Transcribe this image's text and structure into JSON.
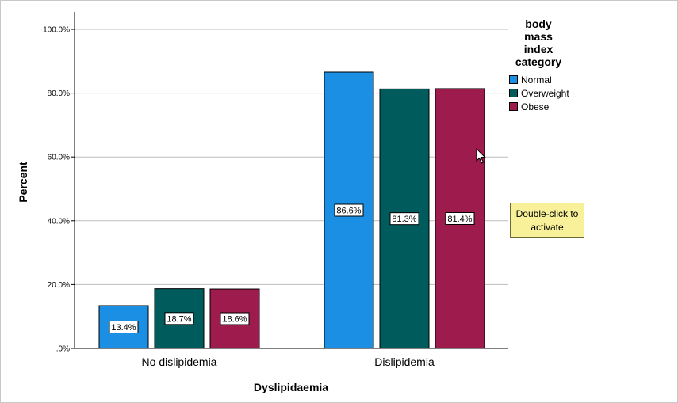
{
  "chart_data": {
    "type": "bar",
    "xlabel": "Dyslipidaemia",
    "ylabel": "Percent",
    "ylim": [
      0,
      100
    ],
    "yticks": [
      ".0%",
      "20.0%",
      "40.0%",
      "60.0%",
      "80.0%",
      "100.0%"
    ],
    "ytick_values": [
      0,
      20,
      40,
      60,
      80,
      100
    ],
    "categories": [
      "No dislipidemia",
      "Dislipidemia"
    ],
    "legend_title": "body mass index category",
    "legend_title_lines": [
      "body",
      "mass",
      "index",
      "category"
    ],
    "legend_position": "top-right",
    "grid": true,
    "series": [
      {
        "name": "Normal",
        "values": [
          13.4,
          86.6
        ],
        "labels": [
          "13.4%",
          "86.6%"
        ],
        "color": "#1a8fe3"
      },
      {
        "name": "Overweight",
        "values": [
          18.7,
          81.3
        ],
        "labels": [
          "18.7%",
          "81.3%"
        ],
        "color": "#005c5c"
      },
      {
        "name": "Obese",
        "values": [
          18.6,
          81.4
        ],
        "labels": [
          "18.6%",
          "81.4%"
        ],
        "color": "#9e1b4e"
      }
    ]
  },
  "tooltip": {
    "line1": "Double-click to",
    "line2": "activate"
  }
}
